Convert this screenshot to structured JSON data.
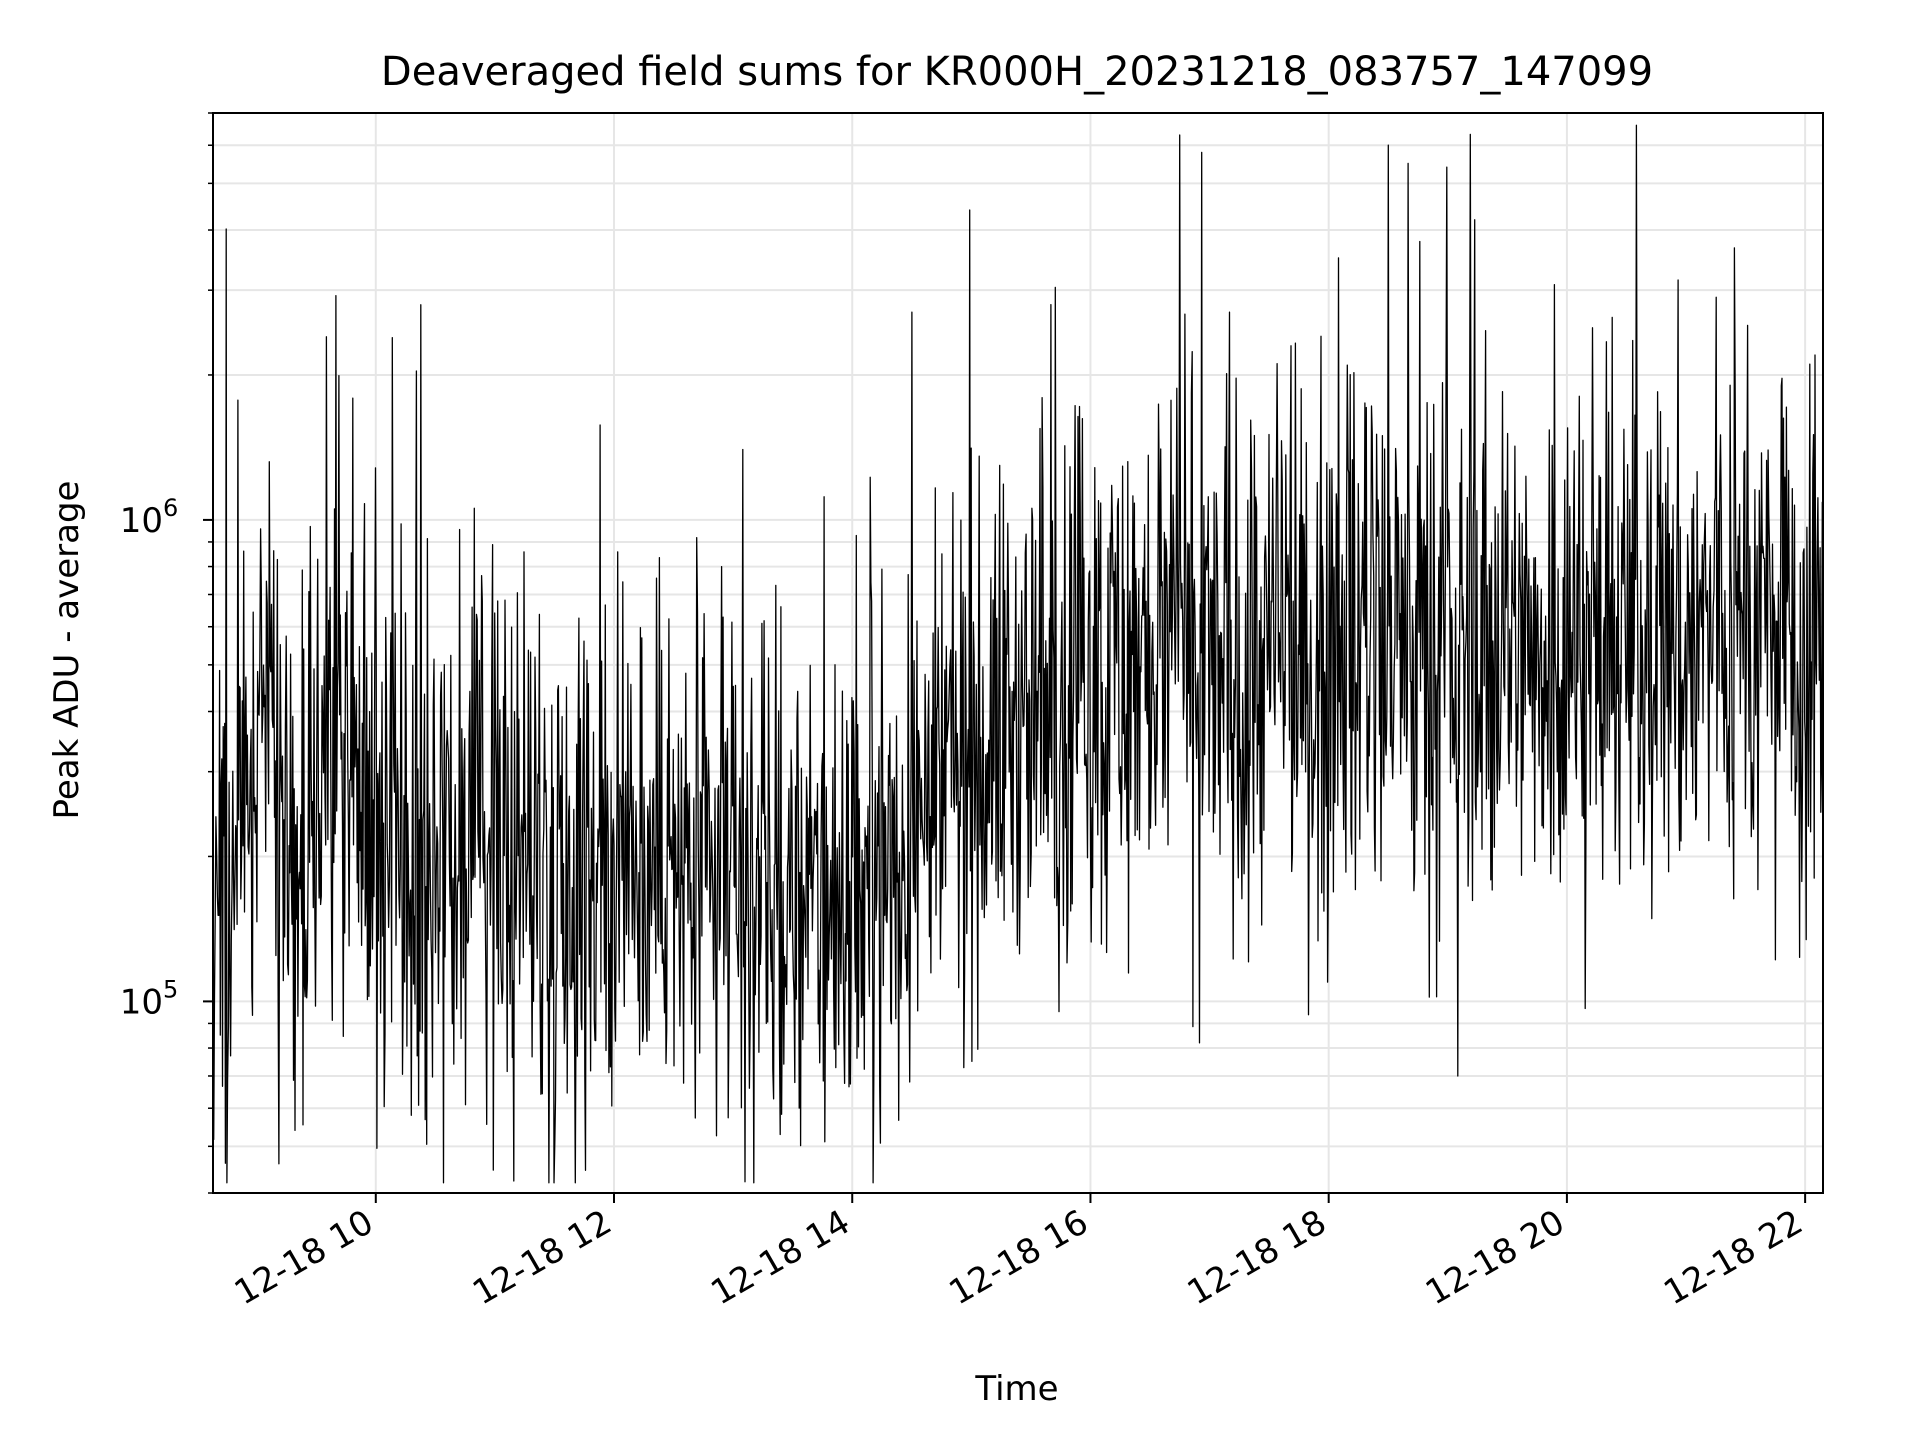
{
  "chart_data": {
    "type": "line",
    "title": "Deaveraged field sums for KR000H_20231218_083757_147099",
    "xlabel": "Time",
    "ylabel": "Peak ADU - average",
    "y_scale": "log",
    "ylim": [
      40000,
      7000000
    ],
    "x_range": [
      "12-18 08:38",
      "12-18 22:09"
    ],
    "grid": true,
    "line_color": "#000000",
    "grid_color": "#e6e6e6",
    "x_ticks": [
      "12-18 10",
      "12-18 12",
      "12-18 14",
      "12-18 16",
      "12-18 18",
      "12-18 20",
      "12-18 22"
    ],
    "y_tick_labels": [
      {
        "value": 100000,
        "base": "10",
        "exp": "5"
      },
      {
        "value": 1000000,
        "base": "10",
        "exp": "6"
      }
    ],
    "series": [
      {
        "time_start": "12-18 08:38",
        "time_end": "12-18 22:09",
        "points": [
          [
            "12-18 08:38",
            200000
          ],
          [
            "12-18 08:50",
            220000
          ],
          [
            "12-18 09:00",
            300000
          ],
          [
            "12-18 09:10",
            400000
          ],
          [
            "12-18 09:20",
            170000
          ],
          [
            "12-18 09:30",
            320000
          ],
          [
            "12-18 09:40",
            280000
          ],
          [
            "12-18 10:00",
            230000
          ],
          [
            "12-18 10:20",
            190000
          ],
          [
            "12-18 10:40",
            210000
          ],
          [
            "12-18 11:00",
            220000
          ],
          [
            "12-18 11:20",
            200000
          ],
          [
            "12-18 11:40",
            180000
          ],
          [
            "12-18 12:00",
            190000
          ],
          [
            "12-18 12:20",
            185000
          ],
          [
            "12-18 12:40",
            175000
          ],
          [
            "12-18 13:00",
            180000
          ],
          [
            "12-18 13:20",
            160000
          ],
          [
            "12-18 13:40",
            150000
          ],
          [
            "12-18 14:00",
            170000
          ],
          [
            "12-18 14:20",
            200000
          ],
          [
            "12-18 14:40",
            250000
          ],
          [
            "12-18 15:00",
            320000
          ],
          [
            "12-18 15:20",
            380000
          ],
          [
            "12-18 15:40",
            420000
          ],
          [
            "12-18 16:00",
            460000
          ],
          [
            "12-18 16:20",
            500000
          ],
          [
            "12-18 16:40",
            520000
          ],
          [
            "12-18 17:00",
            480000
          ],
          [
            "12-18 17:20",
            490000
          ],
          [
            "12-18 17:40",
            500000
          ],
          [
            "12-18 18:00",
            520000
          ],
          [
            "12-18 18:20",
            550000
          ],
          [
            "12-18 18:40",
            500000
          ],
          [
            "12-18 19:00",
            520000
          ],
          [
            "12-18 19:20",
            560000
          ],
          [
            "12-18 19:40",
            540000
          ],
          [
            "12-18 20:00",
            550000
          ],
          [
            "12-18 20:20",
            560000
          ],
          [
            "12-18 20:40",
            570000
          ],
          [
            "12-18 21:00",
            560000
          ],
          [
            "12-18 21:20",
            600000
          ],
          [
            "12-18 21:40",
            620000
          ],
          [
            "12-18 22:00",
            480000
          ],
          [
            "12-18 22:09",
            500000
          ]
        ],
        "spikes": [
          [
            "12-18 09:35",
            2400000
          ],
          [
            "12-18 09:11",
            46000
          ],
          [
            "12-18 10:18",
            58000
          ],
          [
            "12-18 13:05",
            1400000
          ],
          [
            "12-18 14:30",
            2700000
          ],
          [
            "12-18 15:40",
            2800000
          ],
          [
            "12-18 16:45",
            6300000
          ],
          [
            "12-18 16:55",
            82000
          ],
          [
            "12-18 17:10",
            2700000
          ],
          [
            "12-18 18:05",
            3500000
          ],
          [
            "12-18 18:30",
            6000000
          ],
          [
            "12-18 18:40",
            5500000
          ],
          [
            "12-18 19:05",
            70000
          ],
          [
            "12-18 20:35",
            6600000
          ],
          [
            "12-18 21:15",
            2900000
          ],
          [
            "12-18 22:05",
            2200000
          ]
        ]
      }
    ]
  }
}
